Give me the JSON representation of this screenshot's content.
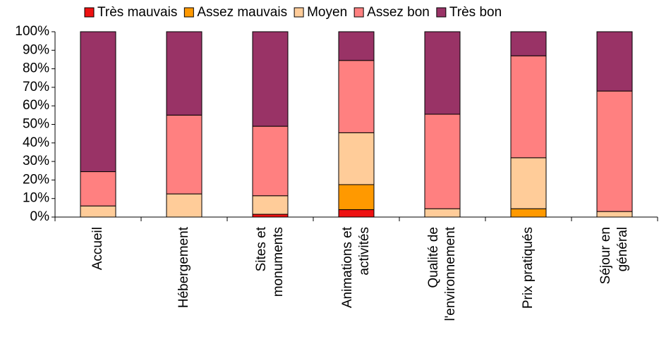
{
  "chart_data": {
    "type": "stacked_bar",
    "categories": [
      "Accueil",
      "Hébergement",
      "Sites et\nmonuments",
      "Animations et\nactivités",
      "Qualité de\nl'environnement",
      "Prix pratiqués",
      "Séjour en\ngénéral"
    ],
    "series": [
      {
        "name": "Très mauvais",
        "color": "#ee1111",
        "values": [
          0,
          0,
          1.5,
          4,
          0,
          0,
          0
        ]
      },
      {
        "name": "Assez mauvais",
        "color": "#ff9900",
        "values": [
          0,
          0,
          0,
          13.5,
          0,
          4.5,
          0
        ]
      },
      {
        "name": "Moyen",
        "color": "#ffcc99",
        "values": [
          6,
          12.5,
          10,
          28,
          4.5,
          27.5,
          3
        ]
      },
      {
        "name": "Assez bon",
        "color": "#ff8080",
        "values": [
          18.5,
          42.5,
          37.5,
          39,
          51,
          55,
          65
        ]
      },
      {
        "name": "Très bon",
        "color": "#993366",
        "values": [
          75.5,
          45,
          51,
          15.5,
          44.5,
          13,
          32
        ]
      }
    ],
    "ylim": [
      0,
      100
    ],
    "yticks": [
      {
        "value": 0,
        "label": "0%"
      },
      {
        "value": 10,
        "label": "10%"
      },
      {
        "value": 20,
        "label": "20%"
      },
      {
        "value": 30,
        "label": "30%"
      },
      {
        "value": 40,
        "label": "40%"
      },
      {
        "value": 50,
        "label": "50%"
      },
      {
        "value": 60,
        "label": "60%"
      },
      {
        "value": 70,
        "label": "70%"
      },
      {
        "value": 80,
        "label": "80%"
      },
      {
        "value": 90,
        "label": "90%"
      },
      {
        "value": 100,
        "label": "100%"
      }
    ],
    "legend": "top"
  }
}
